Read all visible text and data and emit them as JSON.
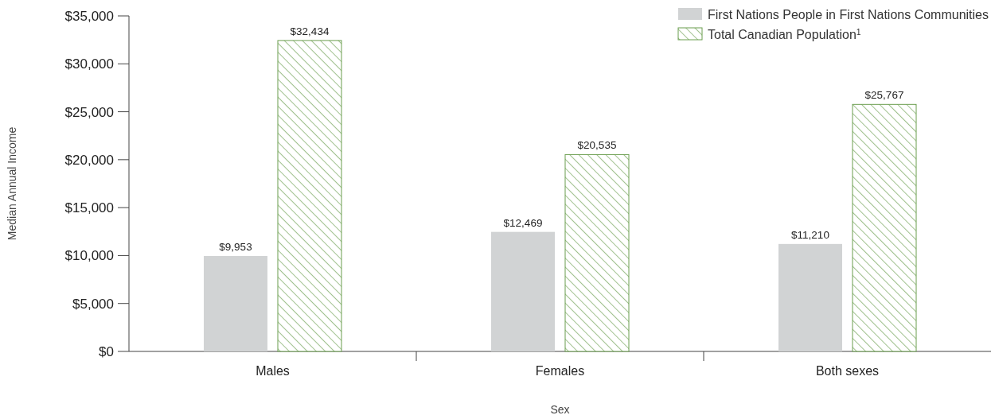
{
  "chart_data": {
    "type": "bar",
    "xlabel": "Sex",
    "ylabel": "Median Annual Income",
    "categories": [
      "Males",
      "Females",
      "Both sexes"
    ],
    "series": [
      {
        "name": "First Nations People in First Nations Communities",
        "color": "#d1d3d4",
        "values": [
          9953,
          12469,
          11210
        ],
        "value_labels": [
          "$9,953",
          "$12,469",
          "$11,210"
        ]
      },
      {
        "name": "Total Canadian Population$^{1}$",
        "color": "#6b9e4f",
        "values": [
          32434,
          20535,
          25767
        ],
        "value_labels": [
          "$32,434",
          "$20,535",
          "$25,767"
        ]
      }
    ],
    "ylim": [
      0,
      35000
    ],
    "yticks": [
      {
        "value": 0,
        "label": "$0"
      },
      {
        "value": 5000,
        "label": "$5,000"
      },
      {
        "value": 10000,
        "label": "$10,000"
      },
      {
        "value": 15000,
        "label": "$15,000"
      },
      {
        "value": 20000,
        "label": "$20,000"
      },
      {
        "value": 25000,
        "label": "$25,000"
      },
      {
        "value": 30000,
        "label": "$30,000"
      },
      {
        "value": 35000,
        "label": "$35,000"
      }
    ],
    "legend": "top right",
    "grid": false
  }
}
